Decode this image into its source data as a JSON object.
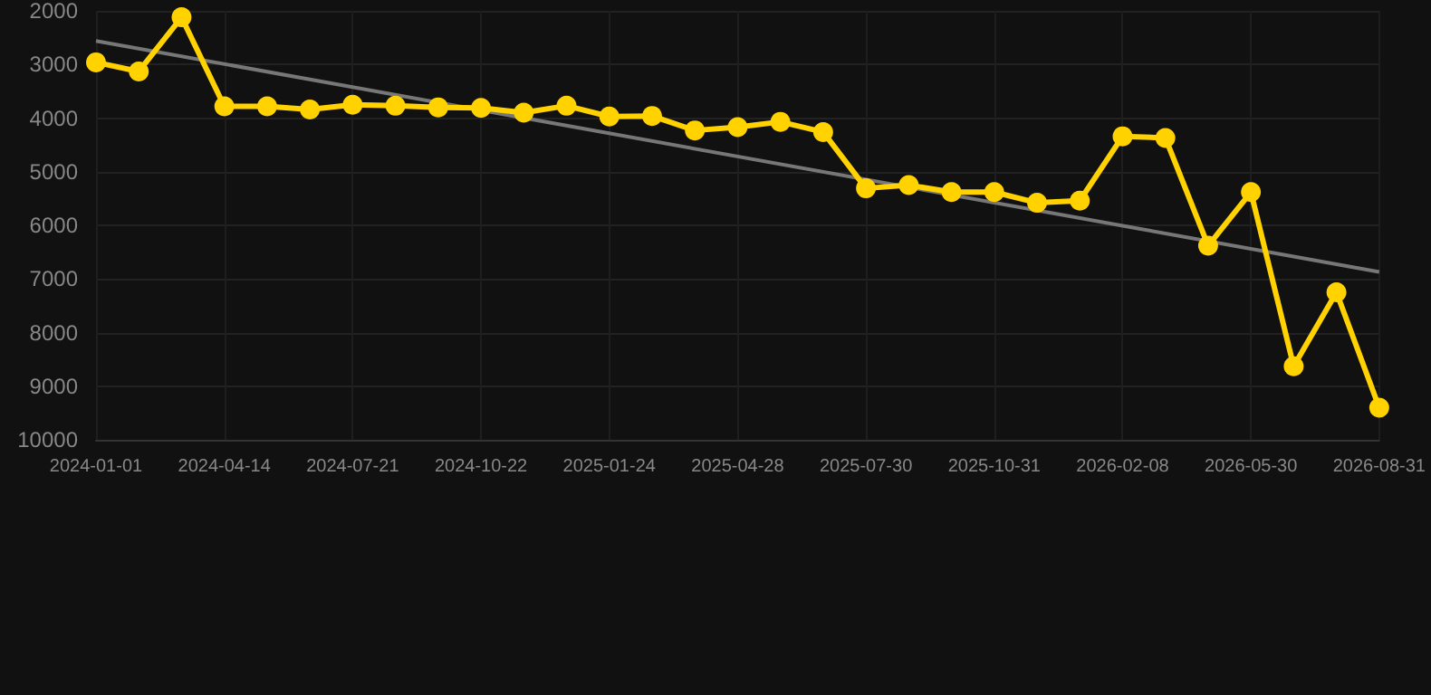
{
  "chart_data": {
    "type": "line",
    "categories": [
      "2024-01-01",
      null,
      null,
      "2024-04-14",
      null,
      null,
      "2024-07-21",
      null,
      null,
      "2024-10-22",
      null,
      null,
      "2025-01-24",
      null,
      null,
      "2025-04-28",
      null,
      null,
      "2025-07-30",
      null,
      null,
      "2025-10-31",
      null,
      null,
      "2026-02-08",
      null,
      null,
      "2026-05-30",
      null,
      null,
      "2026-08-31"
    ],
    "series": [
      {
        "color": "#ffd200",
        "marker": "circle",
        "values": [
          2960,
          3130,
          2120,
          3780,
          3780,
          3840,
          3750,
          3770,
          3800,
          3810,
          3900,
          3770,
          3970,
          3960,
          4230,
          4170,
          4070,
          4260,
          5310,
          5250,
          5380,
          5380,
          5580,
          5540,
          4340,
          4370,
          6380,
          5380,
          8630,
          7250,
          9400
        ]
      },
      {
        "type": "line",
        "color": "#777777",
        "marker": "none",
        "values": [
          2560,
          null,
          null,
          null,
          null,
          null,
          null,
          null,
          null,
          null,
          null,
          null,
          null,
          null,
          null,
          null,
          null,
          null,
          null,
          null,
          null,
          null,
          null,
          null,
          null,
          null,
          null,
          null,
          null,
          null,
          6870
        ]
      }
    ],
    "ylim": [
      10000,
      2000
    ],
    "yticks": [
      2000,
      3000,
      4000,
      5000,
      6000,
      7000,
      8000,
      9000,
      10000
    ],
    "grid": true
  }
}
